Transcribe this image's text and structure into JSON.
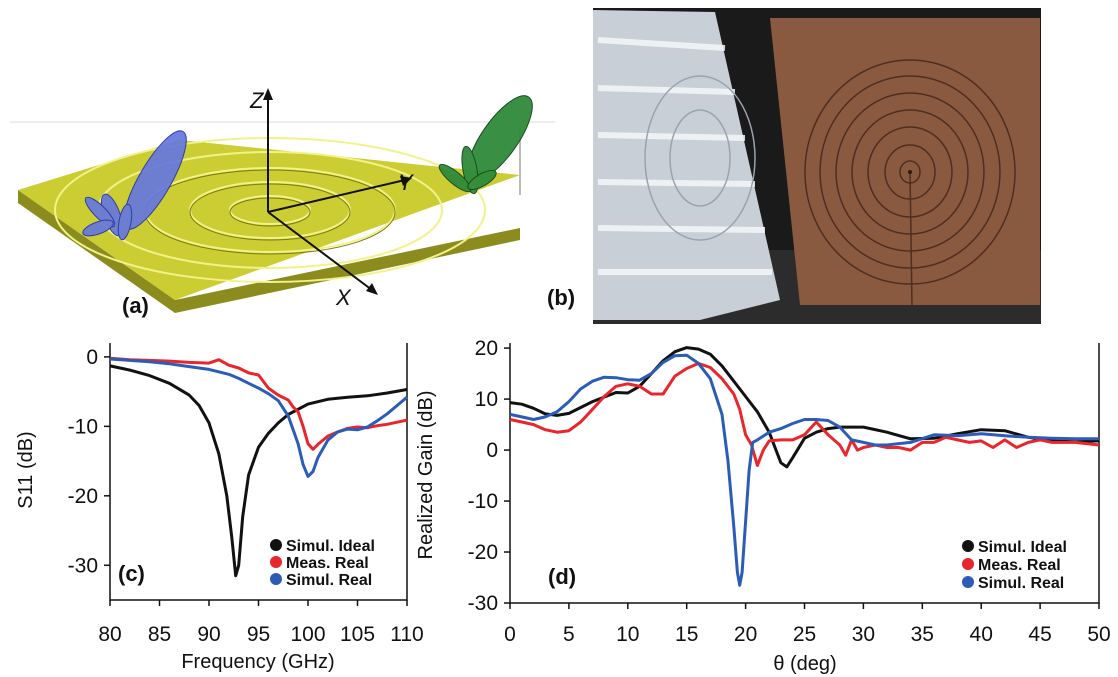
{
  "panels": {
    "a": "(a)",
    "b": "(b)",
    "c": "(c)",
    "d": "(d)"
  },
  "antenna_axes": {
    "z": "Z",
    "y": "Y",
    "x": "X"
  },
  "colors": {
    "ideal": "#111111",
    "meas": "#e8262b",
    "real": "#2a5cb8",
    "substrate": "#cccc33",
    "pattern_left": "#6677dd",
    "pattern_right": "#2f8a3a",
    "copper": "#8a5a40"
  },
  "chart_data": [
    {
      "type": "line",
      "panel": "(c)",
      "xlabel": "Frequency (GHz)",
      "ylabel": "S11 (dB)",
      "xlim": [
        80,
        110
      ],
      "ylim": [
        -35,
        2
      ],
      "xticks": [
        80,
        85,
        90,
        95,
        100,
        105,
        110
      ],
      "yticks": [
        0,
        -10,
        -20,
        -30
      ],
      "grid": false,
      "legend_position": "bottom-right",
      "series": [
        {
          "name": "Simul. Ideal",
          "color": "#111111",
          "x": [
            80,
            82,
            84,
            86,
            88,
            89,
            90,
            91,
            91.8,
            92.3,
            92.7,
            93,
            93.4,
            94,
            95,
            96,
            97,
            98,
            100,
            102,
            104,
            106,
            108,
            110
          ],
          "y": [
            -1.3,
            -1.9,
            -2.7,
            -3.8,
            -5.5,
            -7,
            -9.5,
            -14,
            -20,
            -26,
            -31.5,
            -30,
            -23,
            -17,
            -13,
            -11,
            -9.5,
            -8.3,
            -6.8,
            -6.1,
            -5.8,
            -5.6,
            -5.2,
            -4.7
          ]
        },
        {
          "name": "Meas. Real",
          "color": "#e8262b",
          "x": [
            80,
            82,
            84,
            86,
            88,
            90,
            91,
            92,
            93,
            94,
            95,
            96,
            97,
            98,
            98.5,
            99,
            99.5,
            100,
            100.5,
            101,
            102,
            103,
            104,
            105,
            106,
            107,
            108,
            109,
            110
          ],
          "y": [
            -0.2,
            -0.4,
            -0.5,
            -0.6,
            -0.8,
            -0.9,
            -0.4,
            -1.2,
            -1.6,
            -2.3,
            -2.6,
            -4.5,
            -5.5,
            -6.2,
            -7.2,
            -7.9,
            -10,
            -12.5,
            -13.3,
            -12.6,
            -11.4,
            -10.8,
            -10.3,
            -10.1,
            -10.2,
            -9.9,
            -9.7,
            -9.4,
            -9.1
          ]
        },
        {
          "name": "Simul. Real",
          "color": "#2a5cb8",
          "x": [
            80,
            82,
            84,
            86,
            88,
            90,
            92,
            93,
            94,
            95,
            96,
            97,
            98,
            99,
            99.5,
            100,
            100.5,
            101,
            102,
            103,
            104,
            105,
            106,
            107,
            108,
            109,
            110
          ],
          "y": [
            -0.3,
            -0.5,
            -0.7,
            -1,
            -1.4,
            -1.8,
            -2.5,
            -3.1,
            -3.8,
            -4.5,
            -5.3,
            -6.3,
            -8.5,
            -12.5,
            -15.5,
            -17.2,
            -16.5,
            -14.5,
            -12,
            -10.8,
            -10.4,
            -10.5,
            -10.1,
            -9.2,
            -8.2,
            -7,
            -5.8
          ]
        }
      ]
    },
    {
      "type": "line",
      "panel": "(d)",
      "xlabel": "θ (deg)",
      "ylabel": "Realized Gain (dB)",
      "xlim": [
        0,
        50
      ],
      "ylim": [
        -30,
        21
      ],
      "xticks": [
        0,
        5,
        10,
        15,
        20,
        25,
        30,
        35,
        40,
        45,
        50
      ],
      "yticks": [
        20,
        10,
        0,
        -10,
        -20,
        -30
      ],
      "grid": false,
      "legend_position": "bottom-right",
      "series": [
        {
          "name": "Simul. Ideal",
          "color": "#111111",
          "x": [
            0,
            1,
            2,
            3,
            4,
            5,
            7,
            9,
            10,
            11,
            12,
            13,
            14,
            15,
            16,
            17,
            18,
            19,
            20,
            21,
            22,
            22.5,
            23,
            23.5,
            24,
            25,
            26,
            27,
            28,
            30,
            32,
            34,
            36,
            38,
            40,
            42,
            44,
            46,
            48,
            50
          ],
          "y": [
            9.3,
            9,
            8.2,
            7.1,
            6.8,
            7.2,
            9.5,
            11.3,
            11.2,
            12.5,
            15,
            17.5,
            19.3,
            20.1,
            19.8,
            18.8,
            16.5,
            13.5,
            10.5,
            7.5,
            3.5,
            0.5,
            -2.5,
            -3.3,
            -1.5,
            2.3,
            3.5,
            4.2,
            4.5,
            4.5,
            3.5,
            2.2,
            2.3,
            3.2,
            4,
            3.8,
            2.5,
            1.8,
            1.6,
            1.8
          ]
        },
        {
          "name": "Meas. Real",
          "color": "#e8262b",
          "x": [
            0,
            1,
            2,
            3,
            4,
            5,
            6,
            7,
            8,
            9,
            10,
            11,
            12,
            13,
            14,
            15,
            16,
            17,
            18,
            19,
            19.5,
            20,
            20.5,
            21,
            21.5,
            22,
            23,
            24,
            25,
            26,
            27,
            28,
            28.5,
            29,
            29.5,
            30,
            31,
            32,
            33,
            34,
            35,
            36,
            37,
            38,
            39,
            40,
            41,
            42,
            43,
            44,
            45,
            46,
            48,
            50
          ],
          "y": [
            6,
            5.5,
            5,
            4,
            3.5,
            3.8,
            5.5,
            8,
            10.5,
            12.5,
            13,
            12.5,
            11,
            11,
            14.5,
            16,
            17,
            16.2,
            14,
            11,
            8,
            3,
            1,
            -3,
            0,
            1.8,
            2,
            2,
            3,
            5.5,
            3,
            1,
            -1,
            2,
            0,
            0.5,
            1,
            0.5,
            0.5,
            0,
            1.5,
            1.5,
            2.5,
            2,
            1.5,
            1.8,
            0.5,
            2,
            0.5,
            1.5,
            2,
            1.5,
            1.5,
            1
          ]
        },
        {
          "name": "Simul. Real",
          "color": "#2a5cb8",
          "x": [
            0,
            1,
            2,
            3,
            4,
            5,
            6,
            7,
            8,
            9,
            10,
            11,
            12,
            13,
            14,
            15,
            16,
            17,
            18,
            18.5,
            19,
            19.3,
            19.5,
            19.7,
            20,
            20.3,
            20.6,
            21,
            22,
            23,
            24,
            25,
            26,
            27,
            28,
            29,
            30,
            31,
            32,
            34,
            36,
            38,
            40,
            42,
            44,
            46,
            48,
            50
          ],
          "y": [
            7,
            6.5,
            6,
            6.5,
            7.5,
            9.5,
            12,
            13.5,
            14.3,
            14.2,
            13.8,
            13.7,
            15,
            17.2,
            18.5,
            18.6,
            17,
            14,
            7,
            -2,
            -15,
            -24,
            -26.5,
            -24,
            -14,
            -4,
            1.5,
            2,
            3.5,
            4.2,
            5.2,
            6,
            6,
            5.8,
            4.5,
            2,
            1.5,
            1,
            1,
            1.5,
            3,
            2.8,
            3.2,
            2.8,
            2.5,
            2.3,
            2.2,
            2.2
          ]
        }
      ]
    }
  ]
}
